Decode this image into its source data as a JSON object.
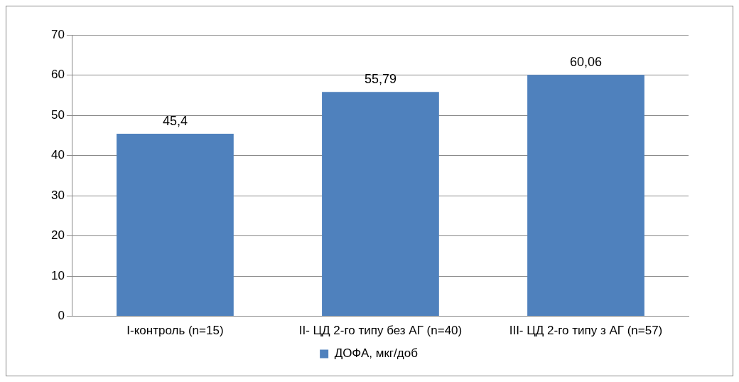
{
  "chart_data": {
    "type": "bar",
    "categories": [
      "I-контроль (n=15)",
      "II- ЦД 2-го типу без АГ (n=40)",
      "III- ЦД 2-го типу з АГ (n=57)"
    ],
    "series": [
      {
        "name": "ДОФА, мкг/доб",
        "color": "#4f81bd",
        "values": [
          45.4,
          55.79,
          60.06
        ],
        "value_labels": [
          "45,4",
          "55,79",
          "60,06"
        ]
      }
    ],
    "ylim": [
      0,
      70
    ],
    "yticks": [
      0,
      10,
      20,
      30,
      40,
      50,
      60,
      70
    ],
    "grid": "y",
    "legend": "bottom"
  }
}
